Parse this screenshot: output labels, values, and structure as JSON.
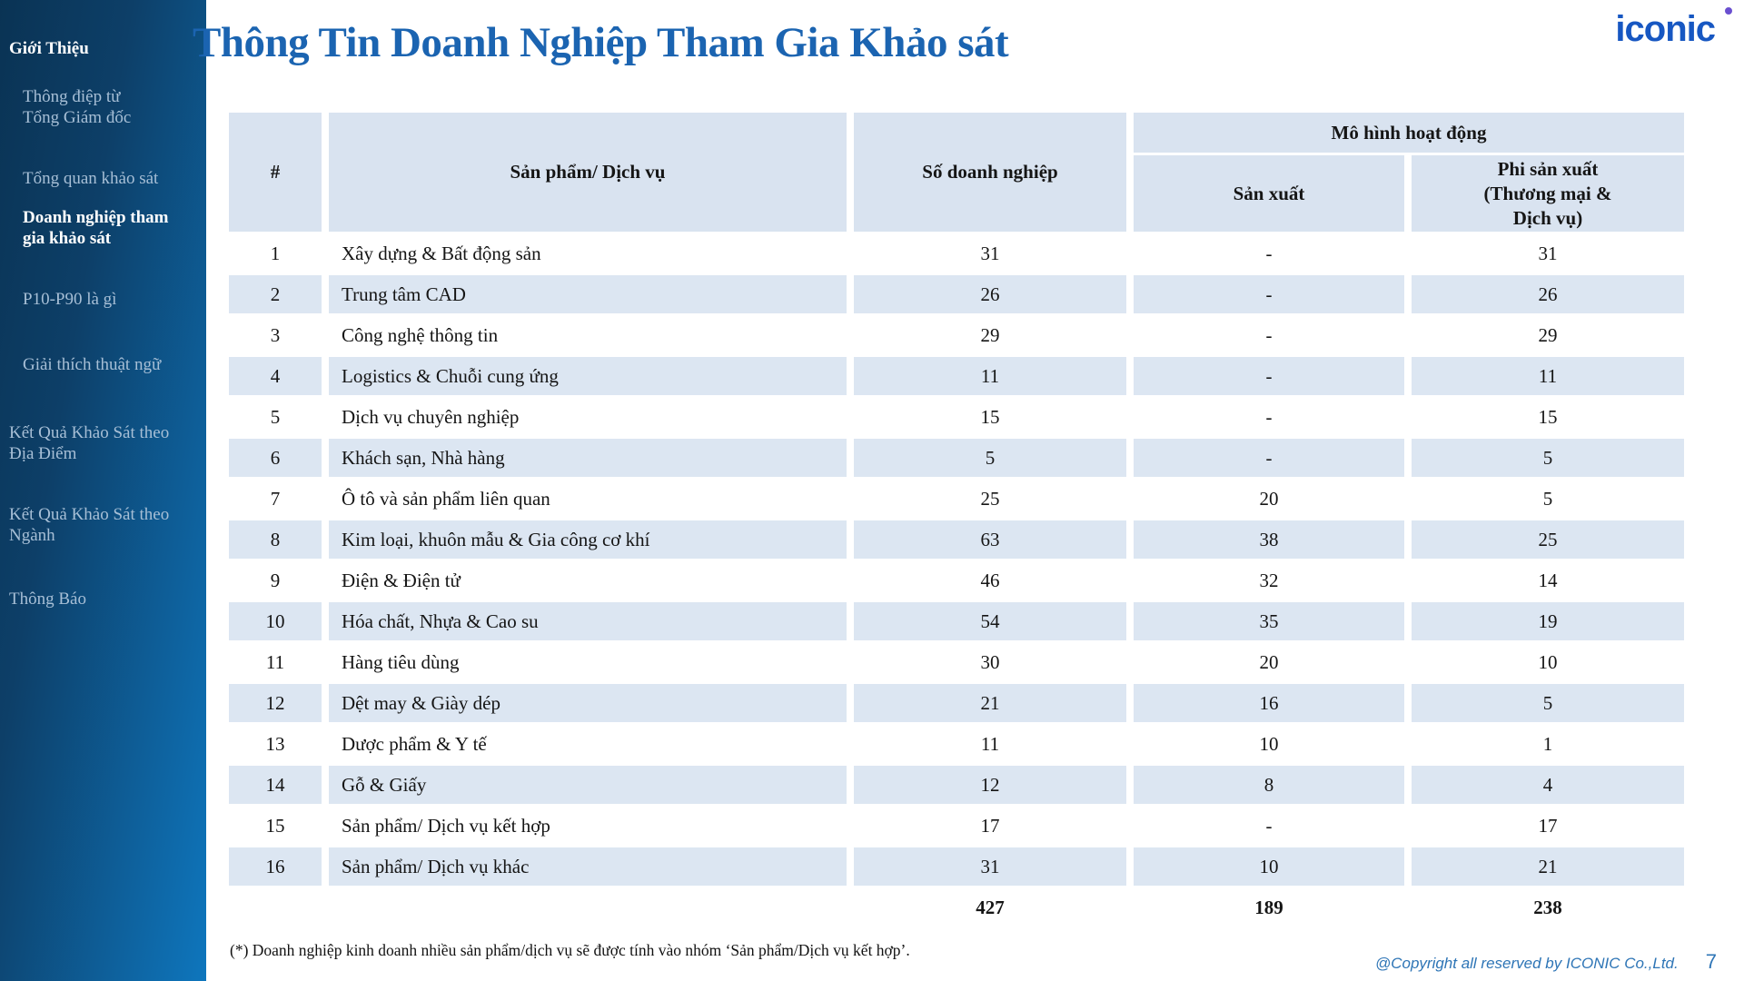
{
  "sidebar": {
    "items": [
      {
        "label": "Giới Thiệu",
        "style": "section-active"
      },
      {
        "label": "Thông điệp từ\nTổng Giám đốc",
        "style": "sub"
      },
      {
        "label": "Tổng quan khảo sát",
        "style": "sub"
      },
      {
        "label": "Doanh nghiệp tham\ngia khảo sát",
        "style": "sub-active"
      },
      {
        "label": "P10-P90 là gì",
        "style": "sub"
      },
      {
        "label": "Giải thích thuật ngữ",
        "style": "sub"
      },
      {
        "label": "Kết Quả Khảo Sát  theo\nĐịa Điểm",
        "style": "section"
      },
      {
        "label": "Kết Quả Khảo Sát  theo\nNgành",
        "style": "section"
      },
      {
        "label": "Thông Báo",
        "style": "section"
      }
    ]
  },
  "header": {
    "title": "Thông Tin Doanh Nghiệp Tham Gia Khảo sát",
    "logo": "iconic"
  },
  "table": {
    "col_hash": "#",
    "col_product": "Sản phẩm/ Dịch vụ",
    "col_count": "Số doanh nghiệp",
    "group_header": "Mô hình hoạt động",
    "col_manufacturing": "Sản xuất",
    "col_non_manufacturing": "Phi sản xuất\n(Thương mại &\nDịch vụ)",
    "rows": [
      {
        "no": "1",
        "product": "Xây dựng & Bất động sản",
        "count": "31",
        "mfg": "-",
        "non_mfg": "31"
      },
      {
        "no": "2",
        "product": "Trung tâm CAD",
        "count": "26",
        "mfg": "-",
        "non_mfg": "26"
      },
      {
        "no": "3",
        "product": "Công nghệ thông tin",
        "count": "29",
        "mfg": "-",
        "non_mfg": "29"
      },
      {
        "no": "4",
        "product": "Logistics & Chuỗi cung ứng",
        "count": "11",
        "mfg": "-",
        "non_mfg": "11"
      },
      {
        "no": "5",
        "product": "Dịch vụ chuyên nghiệp",
        "count": "15",
        "mfg": "-",
        "non_mfg": "15"
      },
      {
        "no": "6",
        "product": "Khách sạn, Nhà hàng",
        "count": "5",
        "mfg": "-",
        "non_mfg": "5"
      },
      {
        "no": "7",
        "product": "Ô tô và sản phẩm liên quan",
        "count": "25",
        "mfg": "20",
        "non_mfg": "5"
      },
      {
        "no": "8",
        "product": "Kim loại, khuôn mẫu & Gia công cơ khí",
        "count": "63",
        "mfg": "38",
        "non_mfg": "25"
      },
      {
        "no": "9",
        "product": "Điện & Điện tử",
        "count": "46",
        "mfg": "32",
        "non_mfg": "14"
      },
      {
        "no": "10",
        "product": "Hóa chất, Nhựa & Cao su",
        "count": "54",
        "mfg": "35",
        "non_mfg": "19"
      },
      {
        "no": "11",
        "product": "Hàng tiêu dùng",
        "count": "30",
        "mfg": "20",
        "non_mfg": "10"
      },
      {
        "no": "12",
        "product": "Dệt may & Giày dép",
        "count": "21",
        "mfg": "16",
        "non_mfg": "5"
      },
      {
        "no": "13",
        "product": "Dược phẩm & Y tế",
        "count": "11",
        "mfg": "10",
        "non_mfg": "1"
      },
      {
        "no": "14",
        "product": "Gỗ & Giấy",
        "count": "12",
        "mfg": "8",
        "non_mfg": "4"
      },
      {
        "no": "15",
        "product": "Sản phẩm/ Dịch vụ kết hợp",
        "count": "17",
        "mfg": "-",
        "non_mfg": "17"
      },
      {
        "no": "16",
        "product": "Sản phẩm/ Dịch vụ khác",
        "count": "31",
        "mfg": "10",
        "non_mfg": "21"
      }
    ],
    "totals": {
      "count": "427",
      "mfg": "189",
      "non_mfg": "238"
    }
  },
  "footnote": "(*) Doanh nghiệp kinh doanh nhiều sản phẩm/dịch vụ sẽ được tính vào nhóm ‘Sản phẩm/Dịch vụ kết hợp’.",
  "footer": {
    "copyright": "@Copyright all reserved by ICONIC Co.,Ltd.",
    "page": "7"
  },
  "colors": {
    "accent_title": "#1b64b1",
    "logo_blue": "#1757c2",
    "row_alt": "#dce6f2",
    "header_cell": "#d9e3f0",
    "sidebar_dark": "#0a3354",
    "sidebar_light": "#0e76bd"
  }
}
